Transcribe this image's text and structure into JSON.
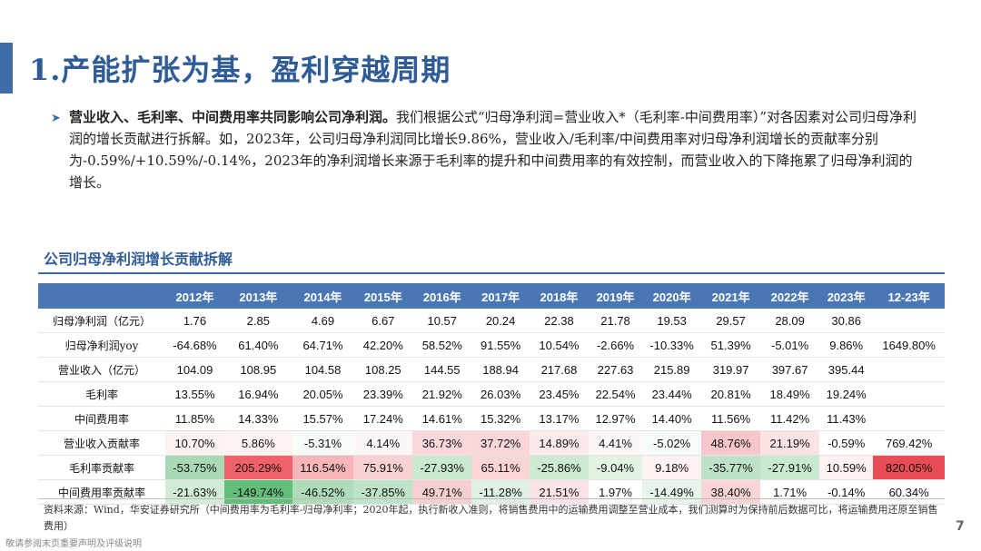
{
  "title": "1.产能扩张为基，盈利穿越周期",
  "bullet": {
    "bold": "营业收入、毛利率、中间费用率共同影响公司净利润。",
    "text": "我们根据公式“归母净利润=营业收入*（毛利率-中间费用率）”对各因素对公司归母净利润的增长贡献进行拆解。如，2023年，公司归母净利润同比增长9.86%，营业收入/毛利率/中间费用率对归母净利润增长的贡献率分别为-0.59%/+10.59%/-0.14%，2023年的净利润增长来源于毛利率的提升和中间费用率的有效控制，而营业收入的下降拖累了归母净利润的增长。"
  },
  "table_title": "公司归母净利润增长贡献拆解",
  "table": {
    "headers": [
      "",
      "2012年",
      "2013年",
      "2014年",
      "2015年",
      "2016年",
      "2017年",
      "2018年",
      "2019年",
      "2020年",
      "2021年",
      "2022年",
      "2023年",
      "12-23年"
    ],
    "rows": [
      {
        "label": "归母净利润（亿元）",
        "values": [
          "1.76",
          "2.85",
          "4.69",
          "6.67",
          "10.57",
          "20.24",
          "22.38",
          "21.78",
          "19.53",
          "29.57",
          "28.09",
          "30.86",
          ""
        ],
        "colors": [
          "",
          "",
          "",
          "",
          "",
          "",
          "",
          "",
          "",
          "",
          "",
          "",
          ""
        ]
      },
      {
        "label": "归母净利润yoy",
        "values": [
          "-64.68%",
          "61.40%",
          "64.71%",
          "42.20%",
          "58.52%",
          "91.55%",
          "10.54%",
          "-2.66%",
          "-10.33%",
          "51.39%",
          "-5.01%",
          "9.86%",
          "1649.80%"
        ],
        "colors": [
          "",
          "",
          "",
          "",
          "",
          "",
          "",
          "",
          "",
          "",
          "",
          "",
          ""
        ]
      },
      {
        "label": "营业收入（亿元）",
        "values": [
          "104.09",
          "108.95",
          "104.58",
          "108.25",
          "144.55",
          "188.94",
          "217.68",
          "227.63",
          "215.89",
          "319.97",
          "397.67",
          "395.44",
          ""
        ],
        "colors": [
          "",
          "",
          "",
          "",
          "",
          "",
          "",
          "",
          "",
          "",
          "",
          "",
          ""
        ]
      },
      {
        "label": "毛利率",
        "values": [
          "13.55%",
          "16.94%",
          "20.05%",
          "23.39%",
          "21.92%",
          "26.03%",
          "23.45%",
          "22.54%",
          "23.44%",
          "20.81%",
          "18.49%",
          "19.24%",
          ""
        ],
        "colors": [
          "",
          "",
          "",
          "",
          "",
          "",
          "",
          "",
          "",
          "",
          "",
          "",
          ""
        ]
      },
      {
        "label": "中间费用率",
        "values": [
          "11.85%",
          "14.33%",
          "15.57%",
          "17.24%",
          "14.61%",
          "15.32%",
          "13.17%",
          "12.97%",
          "14.40%",
          "11.56%",
          "11.42%",
          "11.43%",
          ""
        ],
        "colors": [
          "",
          "",
          "",
          "",
          "",
          "",
          "",
          "",
          "",
          "",
          "",
          "",
          ""
        ]
      },
      {
        "label": "营业收入贡献率",
        "values": [
          "10.70%",
          "5.86%",
          "-5.31%",
          "4.14%",
          "36.73%",
          "37.72%",
          "14.89%",
          "4.41%",
          "-5.02%",
          "48.76%",
          "21.19%",
          "-0.59%",
          "769.42%"
        ],
        "colors": [
          "#fdf2f2",
          "#fdf3f3",
          "#f6fbf7",
          "#fdf6f6",
          "#f9d7da",
          "#f9d6d9",
          "#fceaeb",
          "#fdf6f6",
          "#f6fbf7",
          "#f6c6ca",
          "#fbe3e4",
          "#ffffff",
          "#ffffff"
        ]
      },
      {
        "label": "毛利率贡献率",
        "values": [
          "-53.75%",
          "205.29%",
          "116.54%",
          "75.91%",
          "-27.93%",
          "65.11%",
          "-25.86%",
          "-9.04%",
          "9.18%",
          "-35.77%",
          "-27.91%",
          "10.59%",
          "820.05%"
        ],
        "colors": [
          "#a9d9b4",
          "#f0616a",
          "#f6b6ba",
          "#f9d0d3",
          "#c9e8d0",
          "#f9d5d8",
          "#cce9d3",
          "#e2f3e6",
          "#fdf1f2",
          "#bde2c6",
          "#c9e8d0",
          "#fdf0f1",
          "#ea4c55"
        ]
      },
      {
        "label": "中间费用率贡献率",
        "values": [
          "-21.63%",
          "-149.74%",
          "-46.52%",
          "-37.85%",
          "49.71%",
          "-11.28%",
          "21.51%",
          "1.97%",
          "-14.49%",
          "38.40%",
          "1.71%",
          "-0.14%",
          "60.34%"
        ],
        "colors": [
          "#d1ebd7",
          "#62bd78",
          "#aedbb8",
          "#bee3c7",
          "#f7ced1",
          "#dff1e3",
          "#fbe2e4",
          "#ffffff",
          "#e6f4e9",
          "#f8d4d7",
          "#ffffff",
          "#ffffff",
          "#ffffff"
        ]
      }
    ]
  },
  "source": "资料来源：Wind，华安证券研究所（中间费用率为毛利率-归母净利率；2020年起，执行新收入准则，将销售费用中的运输费用调整至营业成本，我们测算时为保持前后数据可比，将运输费用还原至销售费用）",
  "disclaimer": "敬请参阅末页重要声明及评级说明",
  "page_number": "7"
}
